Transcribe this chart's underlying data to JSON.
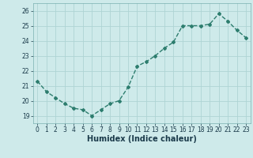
{
  "x": [
    0,
    1,
    2,
    3,
    4,
    5,
    6,
    7,
    8,
    9,
    10,
    11,
    12,
    13,
    14,
    15,
    16,
    17,
    18,
    19,
    20,
    21,
    22,
    23
  ],
  "y": [
    21.3,
    20.6,
    20.2,
    19.8,
    19.5,
    19.4,
    19.0,
    19.4,
    19.8,
    20.0,
    20.9,
    22.3,
    22.6,
    23.0,
    23.5,
    23.9,
    25.0,
    25.0,
    25.0,
    25.1,
    25.8,
    25.3,
    24.7,
    24.2
  ],
  "xlabel": "Humidex (Indice chaleur)",
  "xlim": [
    -0.5,
    23.5
  ],
  "ylim": [
    18.5,
    26.5
  ],
  "yticks": [
    19,
    20,
    21,
    22,
    23,
    24,
    25,
    26
  ],
  "xticks": [
    0,
    1,
    2,
    3,
    4,
    5,
    6,
    7,
    8,
    9,
    10,
    11,
    12,
    13,
    14,
    15,
    16,
    17,
    18,
    19,
    20,
    21,
    22,
    23
  ],
  "line_color": "#2d7d6e",
  "marker": "D",
  "marker_size": 2.0,
  "bg_color": "#ceeaea",
  "grid_color": "#aed4d4",
  "line_width": 1.0,
  "tick_fontsize": 5.5,
  "xlabel_fontsize": 7.0
}
